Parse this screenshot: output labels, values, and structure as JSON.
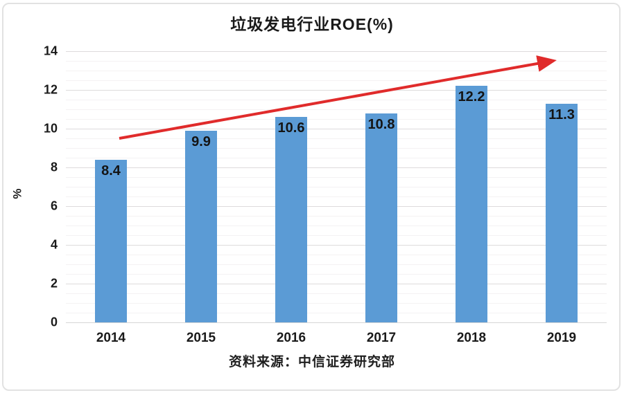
{
  "title": "垃圾发电行业ROE(%)",
  "source": "资料来源：中信证券研究部",
  "chart_data": {
    "type": "bar",
    "title": "垃圾发电行业ROE(%)",
    "categories": [
      "2014",
      "2015",
      "2016",
      "2017",
      "2018",
      "2019"
    ],
    "values": [
      8.4,
      9.9,
      10.6,
      10.8,
      12.2,
      11.3
    ],
    "xlabel": "",
    "ylabel": "%",
    "ylim": [
      0,
      14
    ],
    "yticks": [
      0,
      2,
      4,
      6,
      8,
      10,
      12,
      14
    ],
    "minor_grid_step": 0.5,
    "grid": "horizontal gridlines on, minor every 0.5, major every 2",
    "legend_position": "none",
    "annotation": "straight red upward trend arrow across bars from 2014 level toward upper right",
    "colors": {
      "bar": "#5B9BD5",
      "data_label": "#141414",
      "arrow": "#E02B2B",
      "axis_text": "#1a1a1a"
    }
  }
}
